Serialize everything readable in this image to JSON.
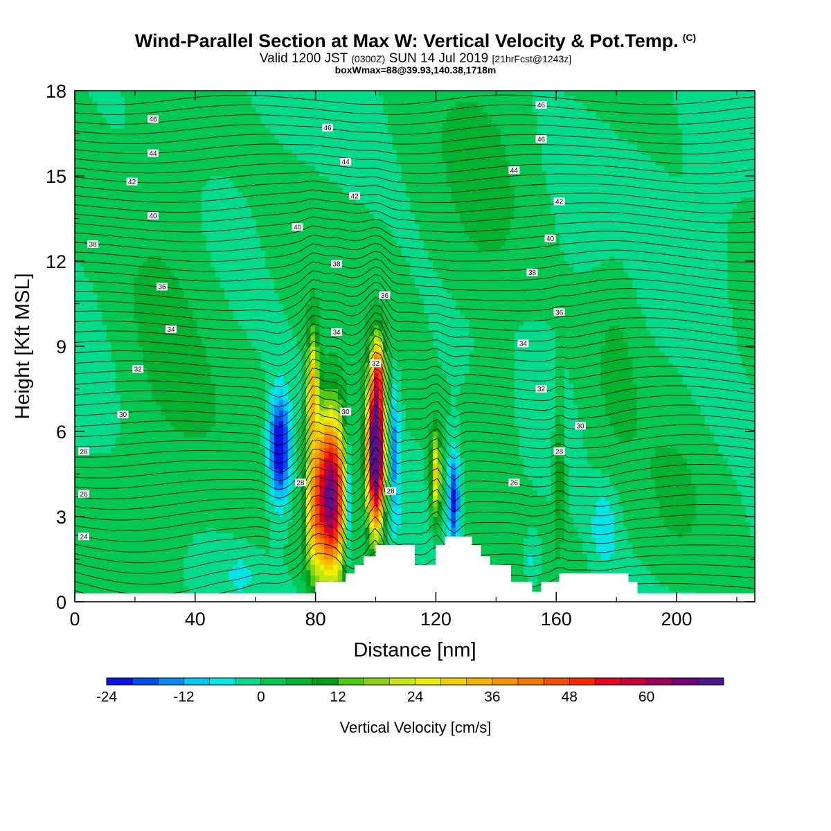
{
  "header": {
    "title": "Wind-Parallel Section at Max W: Vertical Velocity & Pot.Temp.",
    "copyright": "(C)",
    "valid_pre": "Valid 1200 JST",
    "valid_utc": "(0300Z)",
    "valid_date": "SUN 14 Jul 2019",
    "forecast": "[21hrFcst@1243z]",
    "box_wmax": "boxWmax=88@39.93,140.38,1718m"
  },
  "colors": {
    "background_field": "#00dc8c",
    "terrain": "#ffffff",
    "contour": "#000000"
  },
  "chart_data": {
    "type": "heatmap",
    "title": "Wind-Parallel Section at Max W: Vertical Velocity & Pot.Temp.",
    "xlabel": "Distance [nm]",
    "ylabel": "Height [Kft MSL]",
    "xlim": [
      0,
      226
    ],
    "ylim": [
      0,
      18
    ],
    "x_ticks": [
      0,
      40,
      80,
      120,
      160,
      200
    ],
    "y_ticks": [
      0,
      3,
      6,
      9,
      12,
      15,
      18
    ],
    "colorbar": {
      "label": "Vertical Velocity [cm/s]",
      "min": -24,
      "step": 4,
      "colors": [
        "#0a14e6",
        "#0050f0",
        "#0a8cf5",
        "#00c8f0",
        "#00e6e6",
        "#00dc8c",
        "#00c850",
        "#00b432",
        "#00a01e",
        "#50c814",
        "#8cd214",
        "#c8e614",
        "#f0f000",
        "#f0d200",
        "#f5b400",
        "#f59600",
        "#f57800",
        "#f05000",
        "#ff2800",
        "#e6001e",
        "#c8003c",
        "#a0005a",
        "#780078",
        "#50148c"
      ],
      "tick_labels": [
        "-24",
        "-12",
        "0",
        "12",
        "24",
        "36",
        "48",
        "60"
      ],
      "tick_values": [
        -24,
        -12,
        0,
        12,
        24,
        36,
        48,
        60
      ]
    },
    "theta_labels": [
      {
        "text": "46",
        "x": 26,
        "y": 17.0
      },
      {
        "text": "44",
        "x": 26,
        "y": 15.8
      },
      {
        "text": "42",
        "x": 19,
        "y": 14.8
      },
      {
        "text": "40",
        "x": 26,
        "y": 13.6
      },
      {
        "text": "38",
        "x": 6,
        "y": 12.6
      },
      {
        "text": "36",
        "x": 29,
        "y": 11.1
      },
      {
        "text": "34",
        "x": 32,
        "y": 9.6
      },
      {
        "text": "32",
        "x": 21,
        "y": 8.2
      },
      {
        "text": "30",
        "x": 16,
        "y": 6.6
      },
      {
        "text": "28",
        "x": 3,
        "y": 5.3
      },
      {
        "text": "26",
        "x": 3,
        "y": 3.8
      },
      {
        "text": "24",
        "x": 3,
        "y": 2.3
      },
      {
        "text": "46",
        "x": 84,
        "y": 16.7
      },
      {
        "text": "44",
        "x": 90,
        "y": 15.5
      },
      {
        "text": "42",
        "x": 93,
        "y": 14.3
      },
      {
        "text": "40",
        "x": 74,
        "y": 13.2
      },
      {
        "text": "38",
        "x": 87,
        "y": 11.9
      },
      {
        "text": "36",
        "x": 103,
        "y": 10.8
      },
      {
        "text": "34",
        "x": 87,
        "y": 9.5
      },
      {
        "text": "32",
        "x": 100,
        "y": 8.4
      },
      {
        "text": "30",
        "x": 90,
        "y": 6.7
      },
      {
        "text": "28",
        "x": 75,
        "y": 4.2
      },
      {
        "text": "28",
        "x": 105,
        "y": 3.9
      },
      {
        "text": "46",
        "x": 155,
        "y": 17.5
      },
      {
        "text": "46",
        "x": 155,
        "y": 16.3
      },
      {
        "text": "44",
        "x": 146,
        "y": 15.2
      },
      {
        "text": "42",
        "x": 161,
        "y": 14.1
      },
      {
        "text": "40",
        "x": 158,
        "y": 12.8
      },
      {
        "text": "38",
        "x": 152,
        "y": 11.6
      },
      {
        "text": "36",
        "x": 161,
        "y": 10.2
      },
      {
        "text": "34",
        "x": 149,
        "y": 9.1
      },
      {
        "text": "32",
        "x": 155,
        "y": 7.5
      },
      {
        "text": "30",
        "x": 168,
        "y": 6.2
      },
      {
        "text": "28",
        "x": 161,
        "y": 5.3
      },
      {
        "text": "26",
        "x": 146,
        "y": 4.2
      }
    ],
    "terrain_height": [
      [
        0,
        0.3
      ],
      [
        80,
        0.3
      ],
      [
        80,
        0.7
      ],
      [
        90,
        0.7
      ],
      [
        90,
        1.0
      ],
      [
        93,
        1.0
      ],
      [
        93,
        1.3
      ],
      [
        96,
        1.3
      ],
      [
        96,
        1.6
      ],
      [
        100,
        1.6
      ],
      [
        100,
        2.0
      ],
      [
        113,
        2.0
      ],
      [
        113,
        1.3
      ],
      [
        120,
        1.3
      ],
      [
        120,
        2.0
      ],
      [
        123,
        2.0
      ],
      [
        123,
        2.3
      ],
      [
        132,
        2.3
      ],
      [
        132,
        2.0
      ],
      [
        135,
        2.0
      ],
      [
        135,
        1.6
      ],
      [
        138,
        1.6
      ],
      [
        138,
        1.3
      ],
      [
        145,
        1.3
      ],
      [
        145,
        0.7
      ],
      [
        152,
        0.7
      ],
      [
        152,
        0.35
      ],
      [
        155,
        0.35
      ],
      [
        155,
        0.7
      ],
      [
        161,
        0.7
      ],
      [
        161,
        1.0
      ],
      [
        184,
        1.0
      ],
      [
        184,
        0.7
      ],
      [
        187,
        0.7
      ],
      [
        187,
        0.3
      ],
      [
        226,
        0.3
      ]
    ],
    "w_features": [
      {
        "x": 85,
        "z": 3.8,
        "sx": 3.7,
        "sz": 2.0,
        "amp": 70
      },
      {
        "x": 79,
        "z": 7.5,
        "sx": 1.4,
        "sz": 1.5,
        "amp": 32
      },
      {
        "x": 79,
        "z": 3.0,
        "sx": 2.0,
        "sz": 1.6,
        "amp": 20
      },
      {
        "x": 100,
        "z": 5.3,
        "sx": 2.1,
        "sz": 1.9,
        "amp": 88
      },
      {
        "x": 101,
        "z": 8.2,
        "sx": 1.4,
        "sz": 0.8,
        "amp": 26
      },
      {
        "x": 120,
        "z": 4.5,
        "sx": 1.2,
        "sz": 1.1,
        "amp": 30
      },
      {
        "x": 161,
        "z": 4.5,
        "sx": 1.1,
        "sz": 1.6,
        "amp": 14
      },
      {
        "x": 68,
        "z": 5.4,
        "sx": 2.4,
        "sz": 1.3,
        "amp": -28
      },
      {
        "x": 91,
        "z": 3.6,
        "sx": 0.9,
        "sz": 1.6,
        "amp": -22
      },
      {
        "x": 126,
        "z": 3.6,
        "sx": 1.3,
        "sz": 1.2,
        "amp": -22
      },
      {
        "x": 106,
        "z": 5.5,
        "sx": 1.4,
        "sz": 1.6,
        "amp": -14
      },
      {
        "x": 176,
        "z": 2.6,
        "sx": 3.0,
        "sz": 1.0,
        "amp": -8
      },
      {
        "x": 152,
        "z": 1.5,
        "sx": 2.0,
        "sz": 0.7,
        "amp": -7
      },
      {
        "x": 55,
        "z": 1.0,
        "sx": 3.0,
        "sz": 0.4,
        "amp": -5
      },
      {
        "x": 30,
        "z": 11,
        "sx": 12,
        "sz": 5,
        "amp": 5
      },
      {
        "x": 135,
        "z": 14,
        "sx": 10,
        "sz": 3.5,
        "amp": 4
      },
      {
        "x": 180,
        "z": 9,
        "sx": 6,
        "sz": 3,
        "amp": 4
      },
      {
        "x": 212,
        "z": 12,
        "sx": 6,
        "sz": 5,
        "amp": -2
      },
      {
        "x": 140,
        "z": 7,
        "sx": 6,
        "sz": 2,
        "amp": 4
      },
      {
        "x": 200,
        "z": 3,
        "sx": 8,
        "sz": 2,
        "amp": 3
      }
    ],
    "theta_levels": {
      "min": 22,
      "max": 47,
      "step": 0.5
    }
  }
}
